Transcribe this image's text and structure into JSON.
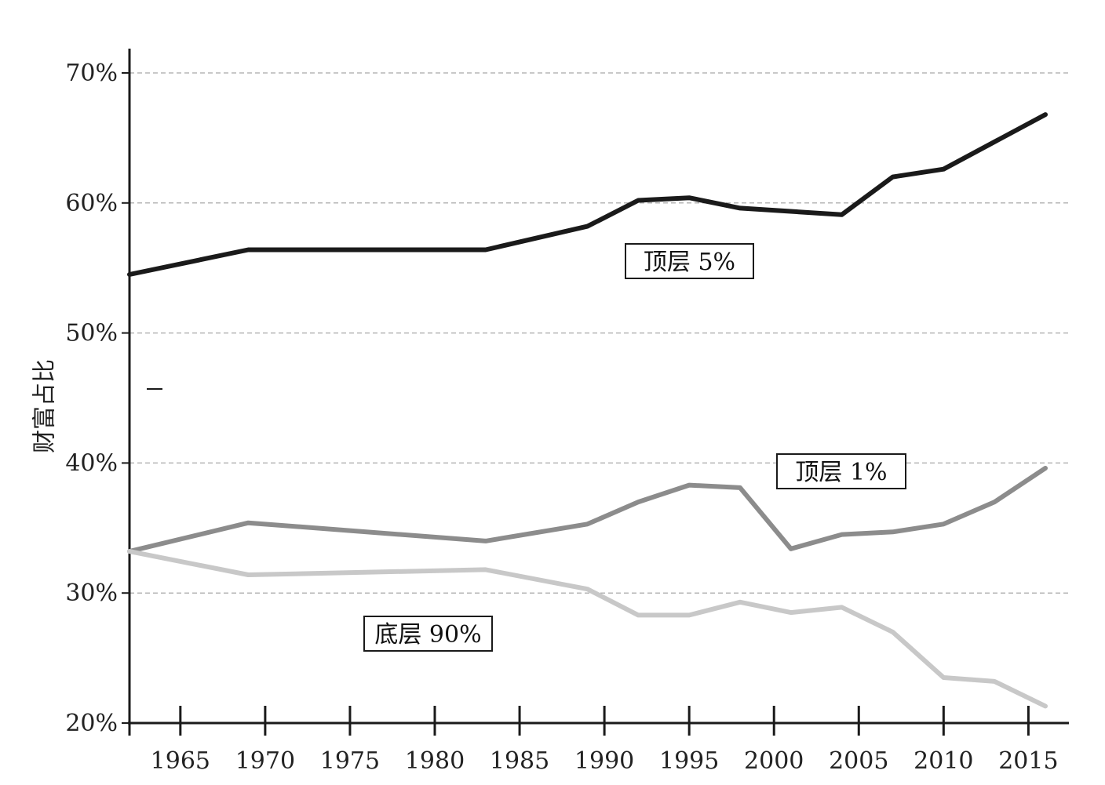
{
  "chart_data": {
    "type": "line",
    "title": "",
    "xlabel": "",
    "ylabel": "财富占比",
    "xlim": [
      1962,
      2017.5
    ],
    "ylim": [
      20,
      71.5
    ],
    "x_ticks": [
      1965,
      1970,
      1975,
      1980,
      1985,
      1990,
      1995,
      2000,
      2005,
      2010,
      2015
    ],
    "y_ticks": [
      20,
      30,
      40,
      50,
      60,
      70
    ],
    "y_tick_labels": [
      "20%",
      "30%",
      "40%",
      "50%",
      "60%",
      "70%"
    ],
    "grid": "horizontal dashed",
    "series": [
      {
        "name": "顶层 5%",
        "color": "#1a1a1a",
        "x": [
          1962,
          1969,
          1983,
          1989,
          1992,
          1995,
          1998,
          2004,
          2007,
          2010,
          2016
        ],
        "y": [
          54.5,
          56.4,
          56.4,
          58.2,
          60.2,
          60.4,
          59.6,
          59.1,
          62.0,
          62.6,
          66.8
        ]
      },
      {
        "name": "顶层 1%",
        "color": "#8c8c8c",
        "x": [
          1962,
          1969,
          1983,
          1989,
          1992,
          1995,
          1998,
          2001,
          2004,
          2007,
          2010,
          2013,
          2016
        ],
        "y": [
          33.2,
          35.4,
          34.0,
          35.3,
          37.0,
          38.3,
          38.1,
          33.4,
          34.5,
          34.7,
          35.3,
          37.0,
          39.6
        ]
      },
      {
        "name": "底层 90%",
        "color": "#c8c8c8",
        "x": [
          1962,
          1969,
          1983,
          1989,
          1992,
          1995,
          1998,
          2001,
          2004,
          2007,
          2010,
          2013,
          2016
        ],
        "y": [
          33.2,
          31.4,
          31.8,
          30.3,
          28.3,
          28.3,
          29.3,
          28.5,
          28.9,
          27.0,
          23.5,
          23.2,
          21.3
        ]
      }
    ]
  }
}
